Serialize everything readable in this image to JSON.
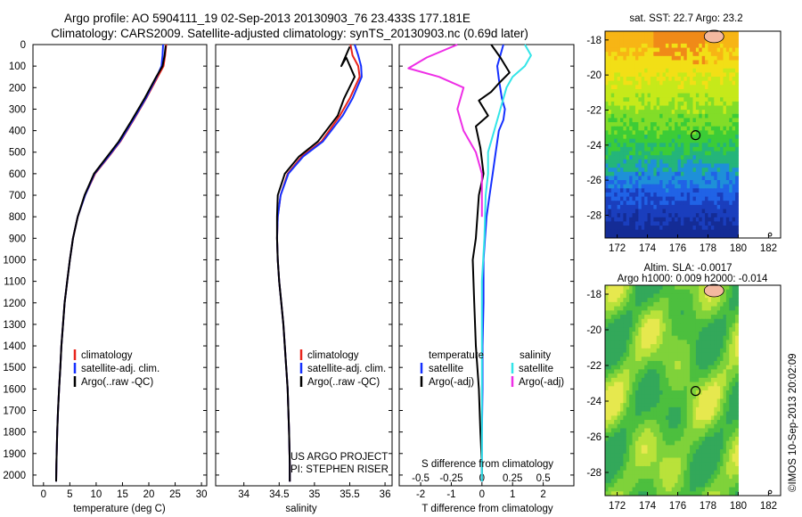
{
  "title": {
    "line1": "Argo profile: AO 5904111_19 02-Sep-2013 20130903_76 23.433S 177.181E",
    "line2": "Climatology: CARS2009. Satellite-adjusted climatology: synTS_20130903.nc (0.69d later)"
  },
  "colors": {
    "climatology": "#e8241c",
    "satellite": "#1530ff",
    "argo": "#000000",
    "sal_satellite": "#33e5e8",
    "sal_argo": "#ee2ee6",
    "island": "#f4b9a0"
  },
  "depth_axis": {
    "ylim": [
      0,
      2050
    ],
    "ticks": [
      "0",
      "100",
      "200",
      "300",
      "400",
      "500",
      "600",
      "700",
      "800",
      "900",
      "1000",
      "1100",
      "1200",
      "1300",
      "1400",
      "1500",
      "1600",
      "1700",
      "1800",
      "1900",
      "2000"
    ]
  },
  "panel_temperature": {
    "xlabel": "temperature (deg C)",
    "xlim": [
      -2,
      31
    ],
    "xticks": [
      "0",
      "5",
      "10",
      "15",
      "20",
      "25",
      "30"
    ],
    "legend": [
      "climatology",
      "satellite-adj. clim.",
      "Argo(..raw -QC)"
    ]
  },
  "panel_salinity": {
    "xlabel": "salinity",
    "xlim": [
      33.6,
      36.1
    ],
    "xticks": [
      "34",
      "34.5",
      "35",
      "35.5",
      "36"
    ],
    "legend": [
      "climatology",
      "satellite-adj. clim.",
      "Argo(..raw -QC)"
    ],
    "note1": "US ARGO PROJECT",
    "note2": "PI: STEPHEN RISER"
  },
  "panel_difference": {
    "xlabel_top": "S difference from climatology",
    "xlabel_bottom": "T difference from climatology",
    "top_ticks": [
      "-0.5",
      "-0.25",
      "0",
      "0.25",
      "0.5"
    ],
    "bottom_ticks": [
      "-2",
      "-1",
      "0",
      "1",
      "2"
    ],
    "xlim_T": [
      -2.7,
      3
    ],
    "legend_temp_title": "temperature",
    "legend_temp": [
      "satellite",
      "Argo(-adj)"
    ],
    "legend_sal_title": "salinity",
    "legend_sal": [
      "satellite",
      "Argo(-adj)"
    ]
  },
  "map_sst": {
    "title": "sat. SST: 22.7 Argo: 23.2",
    "xticks": [
      "172",
      "174",
      "176",
      "178",
      "180",
      "182"
    ],
    "yticks": [
      "-18",
      "-20",
      "-22",
      "-24",
      "-26",
      "-28"
    ],
    "xlim": [
      171.2,
      182.8
    ],
    "ylim": [
      -29.3,
      -17.5
    ],
    "argo_position": {
      "lon": 177.181,
      "lat": -23.433
    }
  },
  "map_sla": {
    "title1": "Altim. SLA: -0.0017",
    "title2": "Argo h1000: 0.009 h2000: -0.014",
    "xticks": [
      "172",
      "174",
      "176",
      "178",
      "180",
      "182"
    ],
    "yticks": [
      "-18",
      "-20",
      "-22",
      "-24",
      "-26",
      "-28"
    ],
    "xlim": [
      171.2,
      182.8
    ],
    "ylim": [
      -29.3,
      -17.5
    ],
    "argo_position": {
      "lon": 177.181,
      "lat": -23.433
    }
  },
  "side_label": "©IMOS 10-Sep-2013 20:02:09",
  "chart_data": [
    {
      "type": "line",
      "panel": "temperature",
      "xlabel": "temperature (deg C)",
      "ylabel": "",
      "xlim": [
        -2,
        31
      ],
      "ylim": [
        2050,
        0
      ],
      "series": [
        {
          "name": "climatology",
          "x": [
            23.3,
            23.1,
            22.8,
            21.7,
            19.5,
            17.1,
            14.6,
            12.4,
            9.8,
            7.9,
            6.5,
            5.6,
            5.0,
            4.5,
            4.0,
            3.7,
            3.4,
            3.2,
            2.95,
            2.75,
            2.6,
            2.45,
            2.4
          ],
          "y": [
            0,
            50,
            100,
            150,
            250,
            350,
            450,
            520,
            600,
            700,
            800,
            900,
            1000,
            1100,
            1200,
            1300,
            1400,
            1500,
            1600,
            1700,
            1800,
            1950,
            2030
          ]
        },
        {
          "name": "satellite-adj. clim.",
          "x": [
            22.7,
            22.6,
            22.4,
            21.5,
            19.4,
            17.0,
            14.5,
            12.3,
            9.7,
            7.9,
            6.5,
            5.6,
            5.0,
            4.5,
            4.0,
            3.7,
            3.4,
            3.2,
            2.95,
            2.75,
            2.6,
            2.45,
            2.4
          ],
          "y": [
            0,
            50,
            100,
            150,
            250,
            350,
            450,
            520,
            600,
            700,
            800,
            900,
            1000,
            1100,
            1200,
            1300,
            1400,
            1500,
            1600,
            1700,
            1800,
            1950,
            2030
          ]
        },
        {
          "name": "Argo(..raw -QC)",
          "x": [
            23.2,
            23.0,
            22.6,
            21.4,
            19.2,
            16.8,
            14.3,
            12.1,
            9.6,
            7.8,
            6.5,
            5.6,
            5.0,
            4.5,
            4.0,
            3.7,
            3.4,
            3.2,
            2.95,
            2.75,
            2.6,
            2.45,
            2.4
          ],
          "y": [
            5,
            50,
            100,
            150,
            250,
            350,
            450,
            520,
            600,
            700,
            800,
            900,
            1000,
            1100,
            1200,
            1300,
            1400,
            1500,
            1600,
            1700,
            1800,
            1950,
            2030
          ]
        }
      ]
    },
    {
      "type": "line",
      "panel": "salinity",
      "xlabel": "salinity",
      "ylabel": "",
      "xlim": [
        33.6,
        36.1
      ],
      "ylim": [
        2050,
        0
      ],
      "series": [
        {
          "name": "climatology",
          "x": [
            35.51,
            35.54,
            35.62,
            35.64,
            35.5,
            35.36,
            35.1,
            34.82,
            34.62,
            34.52,
            34.48,
            34.47,
            34.48,
            34.5,
            34.53,
            34.56,
            34.58,
            34.6,
            34.62,
            34.63,
            34.64,
            34.65,
            34.65
          ],
          "y": [
            0,
            50,
            100,
            150,
            250,
            330,
            450,
            520,
            600,
            700,
            800,
            900,
            1000,
            1100,
            1200,
            1300,
            1400,
            1500,
            1600,
            1700,
            1800,
            1950,
            2030
          ]
        },
        {
          "name": "satellite-adj. clim.",
          "x": [
            35.57,
            35.62,
            35.66,
            35.67,
            35.54,
            35.4,
            35.12,
            34.84,
            34.63,
            34.52,
            34.48,
            34.47,
            34.48,
            34.5,
            34.53,
            34.56,
            34.58,
            34.6,
            34.62,
            34.63,
            34.64,
            34.65,
            34.65
          ],
          "y": [
            0,
            50,
            100,
            150,
            250,
            330,
            450,
            520,
            600,
            700,
            800,
            900,
            1000,
            1100,
            1200,
            1300,
            1400,
            1500,
            1600,
            1700,
            1800,
            1950,
            2030
          ]
        },
        {
          "name": "Argo(..raw -QC)",
          "x": [
            35.5,
            35.38,
            35.45,
            35.57,
            35.42,
            35.33,
            35.05,
            34.78,
            34.58,
            34.48,
            34.47,
            34.47,
            34.48,
            34.5,
            34.53,
            34.56,
            34.58,
            34.6,
            34.62,
            34.63,
            34.64,
            34.65,
            34.65
          ],
          "y": [
            10,
            100,
            60,
            150,
            250,
            330,
            450,
            520,
            600,
            700,
            800,
            900,
            1000,
            1100,
            1200,
            1300,
            1400,
            1500,
            1600,
            1700,
            1800,
            1950,
            2030
          ]
        }
      ]
    },
    {
      "type": "line",
      "panel": "difference",
      "xlabel": "T difference from climatology",
      "xlabel_top": "S difference from climatology",
      "xlim": [
        -2.7,
        3
      ],
      "ylim": [
        2050,
        0
      ],
      "series": [
        {
          "name": "temperature satellite",
          "x": [
            0.7,
            0.6,
            0.5,
            0.55,
            0.65,
            0.75,
            0.7,
            0.55,
            0.45,
            0.35,
            0.25,
            0.15,
            0.1,
            0.05,
            0.05,
            0.02,
            0.02,
            0.0,
            0.0,
            0.0
          ],
          "y": [
            0,
            50,
            100,
            160,
            250,
            300,
            350,
            400,
            500,
            600,
            700,
            800,
            900,
            1000,
            1200,
            1400,
            1600,
            1800,
            1950,
            2030
          ]
        },
        {
          "name": "temperature Argo(-adj)",
          "x": [
            0.3,
            0.6,
            0.9,
            0.55,
            0.3,
            -0.1,
            0.2,
            -0.2,
            -0.05,
            0.05,
            -0.1,
            -0.15,
            -0.2,
            -0.3,
            -0.25,
            -0.2,
            -0.1,
            -0.05,
            0.0,
            0.0
          ],
          "y": [
            0,
            60,
            130,
            180,
            220,
            260,
            330,
            380,
            480,
            600,
            700,
            800,
            900,
            1000,
            1200,
            1400,
            1600,
            1800,
            1950,
            2030
          ]
        },
        {
          "name": "salinity satellite",
          "x": [
            0.35,
            0.4,
            0.35,
            0.25,
            0.2,
            0.15,
            0.1,
            0.05,
            0.05,
            0.03,
            0.02,
            0.0,
            0.0,
            0.0,
            0.0,
            0.0
          ],
          "y": [
            0,
            50,
            100,
            150,
            200,
            300,
            400,
            500,
            600,
            700,
            900,
            1100,
            1300,
            1600,
            1900,
            2030
          ]
        },
        {
          "name": "salinity Argo(-adj)",
          "x": [
            -0.2,
            -0.45,
            -0.6,
            -0.35,
            -0.15,
            -0.2,
            -0.15,
            -0.05,
            0.0,
            0.0,
            0.0
          ],
          "y": [
            0,
            60,
            110,
            150,
            200,
            300,
            400,
            500,
            600,
            700,
            800
          ]
        }
      ]
    }
  ]
}
